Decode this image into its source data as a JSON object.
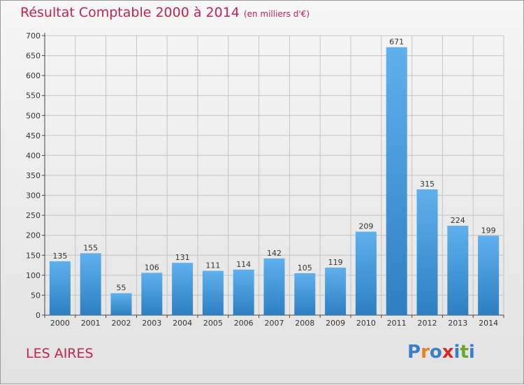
{
  "header": {
    "title": "Résultat Comptable 2000 à 2014",
    "subtitle": "(en milliers d'€)"
  },
  "footer": {
    "town": "LES AIRES",
    "logo_letters": [
      "P",
      "r",
      "o",
      "x",
      "i",
      "t",
      "i"
    ],
    "logo_colors": [
      "#3a7ec8",
      "#e8821e",
      "#3a7ec8",
      "#d42a2a",
      "#3a7ec8",
      "#6aa82e",
      "#3a7ec8"
    ]
  },
  "chart_data": {
    "type": "bar",
    "categories": [
      "2000",
      "2001",
      "2002",
      "2003",
      "2004",
      "2005",
      "2006",
      "2007",
      "2008",
      "2009",
      "2010",
      "2011",
      "2012",
      "2013",
      "2014"
    ],
    "values": [
      135,
      155,
      55,
      106,
      131,
      111,
      114,
      142,
      105,
      119,
      209,
      671,
      315,
      224,
      199
    ],
    "title": "Résultat Comptable 2000 à 2014",
    "xlabel": "",
    "ylabel": "",
    "ylim": [
      0,
      700
    ],
    "yticks": [
      0,
      50,
      100,
      150,
      200,
      250,
      300,
      350,
      400,
      450,
      500,
      550,
      600,
      650,
      700
    ],
    "grid": true,
    "bar_color_top": "#5fb0ec",
    "bar_color_bottom": "#2e7fc2"
  }
}
